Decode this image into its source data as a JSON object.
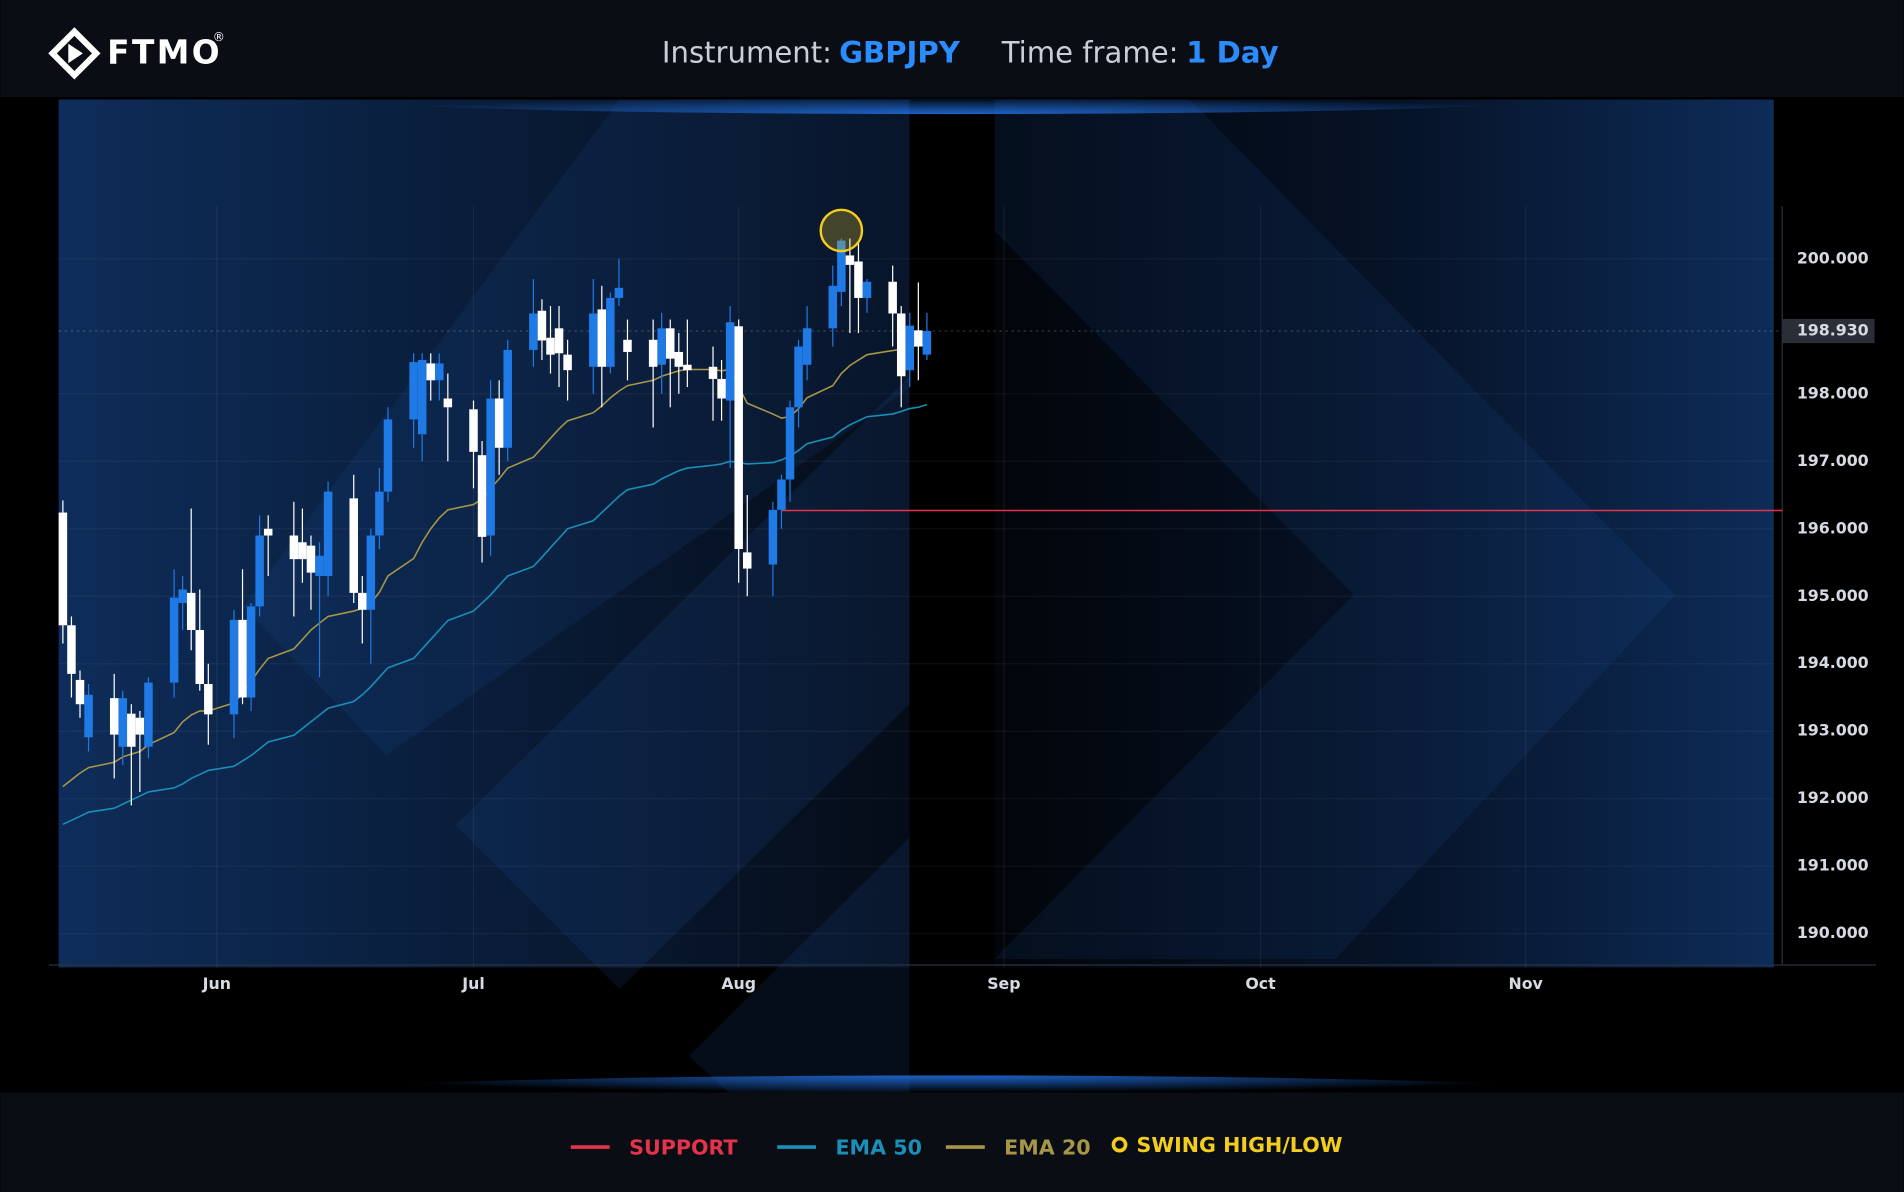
{
  "header": {
    "logo": "FTMO",
    "logo_mark": "®",
    "instrument_label": "Instrument:",
    "instrument": "GBPJPY",
    "timeframe_label": "Time frame:",
    "timeframe": "1 Day"
  },
  "chart_data": {
    "type": "candlestick",
    "candles": {
      "x": [
        -18,
        -17,
        -16,
        -15,
        -12,
        -11,
        -10,
        -9,
        -8,
        -5,
        -4,
        -3,
        -2,
        -1,
        2,
        3,
        4,
        5,
        6,
        9,
        10,
        11,
        12,
        13,
        16,
        17,
        18,
        19,
        20,
        23,
        24,
        25,
        26,
        27,
        30,
        31,
        32,
        33,
        34,
        37,
        38,
        39,
        40,
        41,
        44,
        45,
        46,
        47,
        48,
        51,
        52,
        53,
        54,
        55,
        58,
        59,
        60,
        61,
        62,
        65,
        66,
        67,
        68,
        69,
        72,
        73,
        74,
        75,
        76,
        79,
        80,
        81,
        82,
        83
      ],
      "open": [
        196.24,
        194.57,
        193.76,
        192.91,
        193.49,
        192.77,
        193.26,
        193.2,
        192.77,
        193.72,
        194.9,
        195.05,
        194.5,
        193.7,
        193.25,
        194.65,
        193.5,
        194.85,
        196.0,
        195.9,
        195.8,
        195.75,
        195.3,
        195.3,
        196.45,
        195.05,
        194.8,
        195.9,
        196.55,
        197.62,
        197.4,
        198.45,
        198.2,
        197.93,
        197.77,
        197.09,
        195.9,
        197.93,
        197.2,
        198.65,
        199.23,
        198.83,
        198.97,
        198.58,
        198.4,
        199.25,
        198.4,
        199.42,
        198.8,
        198.8,
        198.43,
        198.97,
        198.62,
        198.43,
        198.4,
        198.22,
        197.9,
        199.0,
        195.65,
        195.47,
        196.28,
        196.73,
        197.8,
        198.43,
        198.97,
        199.51,
        200.05,
        199.96,
        199.42,
        199.66,
        199.19,
        198.35,
        198.94,
        198.58
      ],
      "high": [
        196.42,
        194.7,
        193.9,
        193.7,
        193.85,
        193.6,
        193.4,
        193.3,
        193.8,
        195.4,
        195.3,
        196.3,
        195.1,
        194.0,
        194.8,
        195.4,
        194.9,
        196.2,
        196.2,
        196.4,
        196.3,
        195.9,
        195.8,
        196.7,
        196.8,
        195.3,
        196.0,
        196.9,
        197.8,
        198.6,
        198.6,
        198.6,
        198.6,
        198.3,
        197.9,
        197.3,
        198.2,
        198.2,
        198.8,
        199.7,
        199.4,
        199.3,
        199.3,
        198.8,
        199.7,
        199.6,
        199.5,
        200.0,
        199.1,
        199.1,
        199.2,
        199.1,
        198.9,
        199.1,
        198.7,
        198.5,
        199.3,
        199.1,
        196.5,
        196.4,
        196.8,
        197.9,
        198.8,
        199.3,
        199.9,
        200.3,
        200.3,
        200.25,
        199.7,
        199.9,
        199.3,
        199.2,
        199.65,
        199.2
      ],
      "low": [
        194.3,
        193.5,
        193.2,
        192.7,
        192.3,
        192.5,
        191.9,
        192.1,
        192.6,
        193.5,
        194.5,
        194.2,
        193.6,
        192.8,
        192.9,
        193.4,
        193.3,
        194.7,
        195.3,
        194.7,
        195.2,
        194.8,
        193.8,
        195.0,
        194.9,
        194.3,
        194.0,
        195.7,
        196.4,
        197.2,
        197.0,
        197.9,
        197.9,
        197.0,
        196.6,
        195.5,
        195.6,
        196.8,
        197.0,
        198.4,
        198.5,
        198.3,
        198.1,
        197.9,
        198.0,
        197.8,
        198.3,
        199.3,
        198.2,
        197.5,
        198.0,
        197.8,
        198.0,
        198.1,
        197.6,
        197.6,
        196.9,
        195.2,
        195.0,
        195.0,
        196.0,
        196.4,
        197.5,
        198.2,
        198.7,
        199.3,
        198.9,
        198.9,
        199.2,
        198.7,
        197.8,
        198.1,
        198.2,
        198.5
      ],
      "close": [
        194.57,
        193.85,
        193.4,
        193.54,
        192.95,
        193.49,
        192.77,
        192.95,
        193.72,
        194.98,
        195.1,
        194.5,
        193.7,
        193.25,
        194.65,
        193.5,
        194.85,
        195.9,
        195.9,
        195.55,
        195.55,
        195.35,
        195.6,
        196.55,
        195.05,
        194.8,
        195.9,
        196.55,
        197.62,
        198.47,
        198.5,
        198.2,
        198.45,
        197.8,
        197.14,
        195.88,
        197.93,
        197.2,
        198.65,
        199.19,
        198.79,
        198.58,
        198.6,
        198.35,
        199.19,
        198.4,
        199.42,
        199.57,
        198.62,
        198.4,
        198.97,
        198.52,
        198.4,
        198.35,
        198.22,
        197.93,
        199.06,
        195.7,
        195.41,
        196.28,
        196.73,
        197.8,
        198.7,
        198.97,
        199.6,
        200.27,
        199.91,
        199.42,
        199.66,
        199.19,
        198.26,
        199.01,
        198.7,
        198.93
      ],
      "up_color": "#1f7ae6",
      "down_color": "#ffffff"
    },
    "series": [
      {
        "name": "EMA 50",
        "color": "#1a8fb8",
        "values": [
          191.62,
          191.68,
          191.74,
          191.8,
          191.86,
          191.92,
          191.98,
          192.04,
          192.1,
          192.16,
          192.22,
          192.3,
          192.36,
          192.42,
          192.48,
          192.56,
          192.64,
          192.74,
          192.84,
          192.94,
          193.04,
          193.14,
          193.24,
          193.34,
          193.44,
          193.54,
          193.66,
          193.8,
          193.94,
          194.08,
          194.22,
          194.36,
          194.5,
          194.64,
          194.78,
          194.9,
          195.02,
          195.16,
          195.3,
          195.44,
          195.58,
          195.72,
          195.86,
          196.0,
          196.12,
          196.24,
          196.36,
          196.48,
          196.58,
          196.66,
          196.74,
          196.8,
          196.86,
          196.9,
          196.94,
          196.96,
          197.0,
          196.98,
          196.96,
          196.98,
          197.02,
          197.08,
          197.16,
          197.26,
          197.36,
          197.46,
          197.54,
          197.6,
          197.66,
          197.7,
          197.74,
          197.78,
          197.8,
          197.84
        ]
      },
      {
        "name": "EMA 20",
        "color": "#a89648",
        "values": [
          192.18,
          192.28,
          192.38,
          192.46,
          192.54,
          192.62,
          192.66,
          192.7,
          192.8,
          192.98,
          193.14,
          193.24,
          193.3,
          193.3,
          193.42,
          193.56,
          193.74,
          193.92,
          194.08,
          194.22,
          194.36,
          194.5,
          194.6,
          194.7,
          194.78,
          194.82,
          194.9,
          195.06,
          195.3,
          195.56,
          195.8,
          196.0,
          196.16,
          196.28,
          196.36,
          196.44,
          196.6,
          196.74,
          196.9,
          197.06,
          197.2,
          197.34,
          197.48,
          197.6,
          197.72,
          197.82,
          197.94,
          198.04,
          198.12,
          198.2,
          198.26,
          198.3,
          198.34,
          198.36,
          198.36,
          198.34,
          198.36,
          198.1,
          197.86,
          197.7,
          197.64,
          197.66,
          197.78,
          197.94,
          198.12,
          198.3,
          198.42,
          198.5,
          198.58,
          198.64,
          198.66,
          198.7,
          198.72,
          198.74
        ]
      }
    ],
    "support": {
      "name": "SUPPORT",
      "color": "#e5334b",
      "value": 196.27,
      "x_start": 66
    },
    "swing": {
      "name": "SWING HIGH/LOW",
      "color": "#f2cc1e",
      "x": 73,
      "value": 200.42
    },
    "last_price": {
      "value": 198.93,
      "label": "198.930"
    },
    "xlim": [
      -18.5,
      182
    ],
    "xticks": [
      {
        "value": 0,
        "label": "Jun"
      },
      {
        "value": 30,
        "label": "Jul"
      },
      {
        "value": 61,
        "label": "Aug"
      },
      {
        "value": 92,
        "label": "Sep"
      },
      {
        "value": 122,
        "label": "Oct"
      },
      {
        "value": 153,
        "label": "Nov"
      }
    ],
    "ylim": [
      189.5,
      202.36
    ],
    "yticks": [
      {
        "value": 190,
        "label": "190.000"
      },
      {
        "value": 191,
        "label": "191.000"
      },
      {
        "value": 192,
        "label": "192.000"
      },
      {
        "value": 193,
        "label": "193.000"
      },
      {
        "value": 194,
        "label": "194.000"
      },
      {
        "value": 195,
        "label": "195.000"
      },
      {
        "value": 196,
        "label": "196.000"
      },
      {
        "value": 197,
        "label": "197.000"
      },
      {
        "value": 198,
        "label": "198.000"
      },
      {
        "value": 200,
        "label": "200.000"
      }
    ],
    "grid": true
  }
}
